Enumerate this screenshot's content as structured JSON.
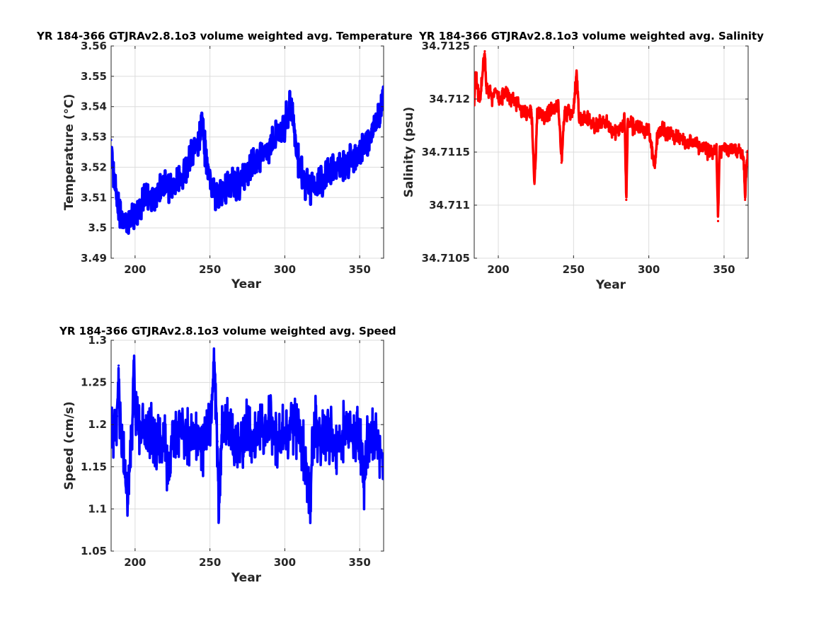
{
  "chart_data": [
    {
      "id": "temperature",
      "type": "line",
      "title": "YR 184-366 GTJRAv2.8.1o3 volume weighted avg. Temperature",
      "xlabel": "Year",
      "ylabel": "Temperature (°C)",
      "xlim": [
        184,
        366
      ],
      "ylim": [
        3.49,
        3.56
      ],
      "xticks": [
        200,
        250,
        300,
        350
      ],
      "xtick_labels": [
        "200",
        "250",
        "300",
        "350"
      ],
      "yticks": [
        3.49,
        3.5,
        3.51,
        3.52,
        3.53,
        3.54,
        3.55,
        3.56
      ],
      "ytick_labels": [
        "3.49",
        "3.5",
        "3.51",
        "3.52",
        "3.53",
        "3.54",
        "3.55",
        "3.56"
      ],
      "grid": true,
      "color": "#0000ff",
      "series": [
        {
          "x": [
            184,
            185,
            188,
            192,
            196,
            200,
            205,
            210,
            215,
            220,
            225,
            230,
            235,
            240,
            243,
            245,
            247,
            250,
            253,
            256,
            260,
            265,
            270,
            275,
            280,
            285,
            290,
            295,
            300,
            303,
            305,
            307,
            310,
            313,
            316,
            320,
            325,
            330,
            335,
            340,
            345,
            350,
            355,
            360,
            363,
            366
          ],
          "y": [
            3.529,
            3.52,
            3.509,
            3.502,
            3.501,
            3.505,
            3.508,
            3.511,
            3.512,
            3.513,
            3.514,
            3.516,
            3.52,
            3.526,
            3.531,
            3.536,
            3.524,
            3.516,
            3.512,
            3.51,
            3.512,
            3.514,
            3.515,
            3.518,
            3.521,
            3.524,
            3.527,
            3.53,
            3.534,
            3.539,
            3.541,
            3.528,
            3.52,
            3.515,
            3.513,
            3.514,
            3.516,
            3.518,
            3.52,
            3.521,
            3.523,
            3.526,
            3.529,
            3.534,
            3.538,
            3.544
          ],
          "band": 0.006,
          "line_width": 4.5
        }
      ]
    },
    {
      "id": "salinity",
      "type": "line",
      "title": "YR 184-366 GTJRAv2.8.1o3 volume weighted avg. Salinity",
      "xlabel": "Year",
      "ylabel": "Salinity (psu)",
      "xlim": [
        184,
        366
      ],
      "ylim": [
        34.7105,
        34.7125
      ],
      "xticks": [
        200,
        250,
        300,
        350
      ],
      "xtick_labels": [
        "200",
        "250",
        "300",
        "350"
      ],
      "yticks": [
        34.7105,
        34.711,
        34.7115,
        34.712,
        34.7125
      ],
      "ytick_labels": [
        "34.7105",
        "34.711",
        "34.7115",
        "34.712",
        "34.7125"
      ],
      "grid": true,
      "color": "#ff0000",
      "series": [
        {
          "x": [
            184,
            185,
            186,
            188,
            190,
            191,
            192,
            194,
            196,
            198,
            200,
            205,
            210,
            215,
            220,
            222,
            224,
            226,
            230,
            235,
            240,
            242,
            244,
            250,
            252,
            254,
            260,
            265,
            270,
            275,
            280,
            284,
            285,
            286,
            290,
            295,
            300,
            304,
            306,
            310,
            315,
            320,
            325,
            330,
            335,
            340,
            345,
            346,
            347,
            350,
            355,
            360,
            363,
            364,
            365,
            366
          ],
          "y": [
            34.71195,
            34.71225,
            34.7121,
            34.712,
            34.7123,
            34.71245,
            34.7121,
            34.7121,
            34.712,
            34.7121,
            34.712,
            34.71205,
            34.712,
            34.7119,
            34.71185,
            34.7119,
            34.7112,
            34.7119,
            34.71185,
            34.7119,
            34.7119,
            34.7114,
            34.71185,
            34.7119,
            34.71225,
            34.7118,
            34.7118,
            34.71175,
            34.7118,
            34.7117,
            34.7117,
            34.7118,
            34.71105,
            34.71175,
            34.71175,
            34.7117,
            34.7117,
            34.71135,
            34.7117,
            34.7117,
            34.71165,
            34.71165,
            34.7116,
            34.7116,
            34.71155,
            34.7115,
            34.7115,
            34.71085,
            34.7115,
            34.71155,
            34.7115,
            34.7115,
            34.71145,
            34.71105,
            34.7114,
            34.71145
          ],
          "band": 9e-05,
          "line_width": 3.5
        }
      ]
    },
    {
      "id": "speed",
      "type": "line",
      "title": "YR 184-366 GTJRAv2.8.1o3 volume weighted avg. Speed",
      "xlabel": "Year",
      "ylabel": "Speed (cm/s)",
      "xlim": [
        184,
        366
      ],
      "ylim": [
        1.05,
        1.3
      ],
      "xticks": [
        200,
        250,
        300,
        350
      ],
      "xtick_labels": [
        "200",
        "250",
        "300",
        "350"
      ],
      "yticks": [
        1.05,
        1.1,
        1.15,
        1.2,
        1.25,
        1.3
      ],
      "ytick_labels": [
        "1.05",
        "1.1",
        "1.15",
        "1.2",
        "1.25",
        "1.3"
      ],
      "grid": true,
      "color": "#0000ff",
      "series": [
        {
          "x": [
            184,
            186,
            188,
            189,
            190,
            192,
            194,
            195,
            198,
            199,
            200,
            203,
            206,
            210,
            215,
            220,
            222,
            225,
            230,
            235,
            240,
            245,
            250,
            253,
            255,
            256,
            258,
            260,
            265,
            270,
            275,
            280,
            285,
            290,
            295,
            300,
            305,
            310,
            313,
            316,
            317,
            318,
            320,
            325,
            330,
            335,
            340,
            345,
            350,
            353,
            355,
            360,
            363,
            366
          ],
          "y": [
            1.19,
            1.2,
            1.21,
            1.27,
            1.19,
            1.18,
            1.12,
            1.1,
            1.2,
            1.27,
            1.22,
            1.19,
            1.2,
            1.19,
            1.17,
            1.19,
            1.13,
            1.2,
            1.19,
            1.18,
            1.19,
            1.17,
            1.2,
            1.27,
            1.18,
            1.1,
            1.19,
            1.2,
            1.19,
            1.17,
            1.2,
            1.18,
            1.19,
            1.2,
            1.18,
            1.19,
            1.2,
            1.18,
            1.17,
            1.12,
            1.09,
            1.17,
            1.2,
            1.18,
            1.19,
            1.17,
            1.2,
            1.18,
            1.19,
            1.13,
            1.18,
            1.19,
            1.17,
            1.16
          ],
          "band": 0.04,
          "line_width": 3.5
        }
      ]
    }
  ]
}
